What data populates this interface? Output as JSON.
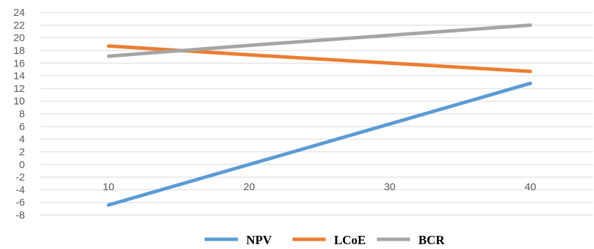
{
  "chart_data": {
    "type": "line",
    "title": "",
    "xlabel": "",
    "ylabel": "",
    "x": [
      10,
      20,
      30,
      40
    ],
    "ylim": [
      -8,
      24
    ],
    "y_ticks": [
      -8,
      -6,
      -4,
      -2,
      0,
      2,
      4,
      6,
      8,
      10,
      12,
      14,
      16,
      18,
      20,
      22,
      24
    ],
    "grid": true,
    "legend": "bottom",
    "series": [
      {
        "name": "NPV",
        "color": "#5b9bd5",
        "values": [
          -6.4,
          0.0,
          6.4,
          12.8
        ]
      },
      {
        "name": "LCoE",
        "color": "#ed7d31",
        "values": [
          18.7,
          17.3,
          16.0,
          14.7
        ]
      },
      {
        "name": "BCR",
        "color": "#a5a5a5",
        "values": [
          17.1,
          18.8,
          20.4,
          22.0
        ]
      }
    ]
  }
}
